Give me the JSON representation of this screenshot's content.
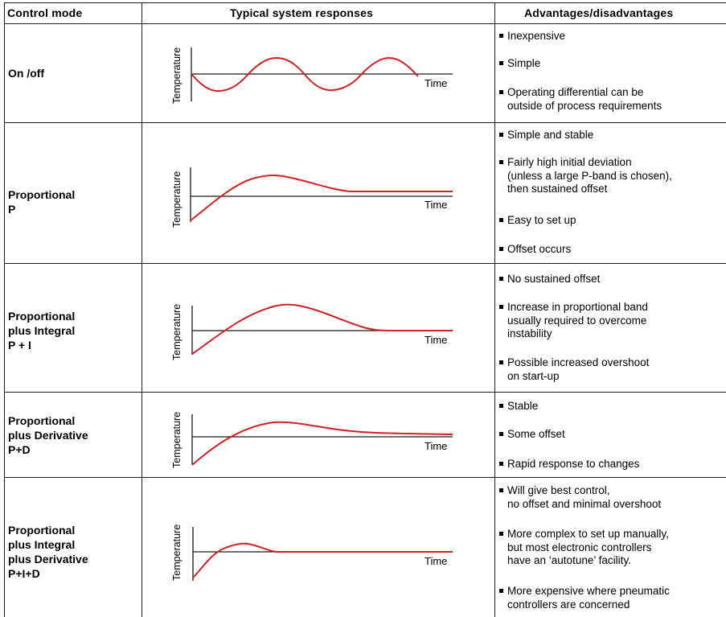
{
  "headers": {
    "mode": "Control mode",
    "responses": "Typical system responses",
    "advantages": "Advantages/disadvantages"
  },
  "rows": [
    {
      "mode": "On /off",
      "y_label": "Temperature",
      "x_label": "Time",
      "advantages": [
        "Inexpensive",
        "Simple",
        "Operating differential can be\noutside of process requirements"
      ]
    },
    {
      "mode": "Proportional\nP",
      "y_label": "Temperature",
      "x_label": "Time",
      "advantages": [
        "Simple and stable",
        "Fairly high initial deviation\n(unless a large P-band is chosen),\nthen sustained offset",
        "Easy to set up",
        "Offset occurs"
      ]
    },
    {
      "mode": "Proportional\nplus Integral\nP + I",
      "y_label": "Temperature",
      "x_label": "Time",
      "advantages": [
        "No sustained offset",
        "Increase in proportional band\nusually required to overcome\ninstability",
        "Possible increased overshoot\non start-up"
      ]
    },
    {
      "mode": "Proportional\nplus Derivative\nP+D",
      "y_label": "Temperature",
      "x_label": "Time",
      "advantages": [
        "Stable",
        "Some offset",
        "Rapid response to changes"
      ]
    },
    {
      "mode": "Proportional\nplus Integral\nplus Derivative\nP+I+D",
      "y_label": "Temperature",
      "x_label": "Time",
      "advantages": [
        "Will give best control,\nno offset and minimal overshoot",
        "More complex to set up manually,\nbut most electronic controllers\nhave an ‘autotune’ facility.",
        "More expensive where pneumatic\ncontrollers are concerned"
      ]
    }
  ],
  "colors": {
    "response_curve": "#d42020",
    "grid_lines": "#1a1a1a",
    "text": "#000000"
  }
}
